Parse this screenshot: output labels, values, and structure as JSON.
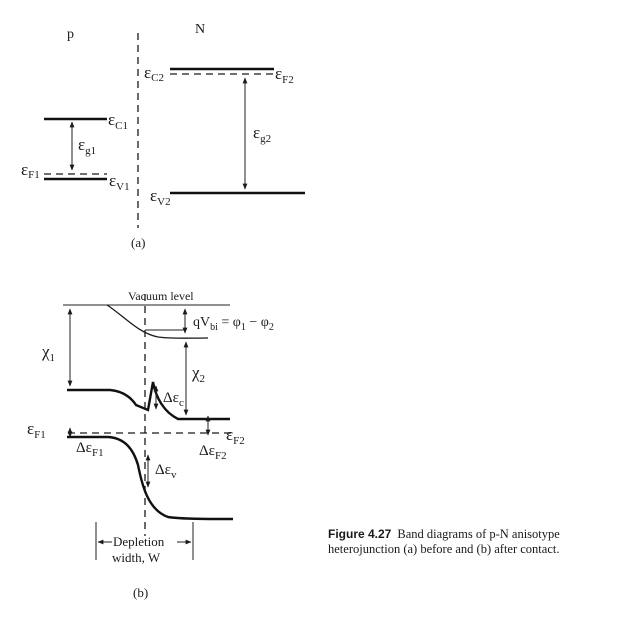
{
  "diagram_a": {
    "region_left": "p",
    "region_right": "N",
    "label": "(a)",
    "ec1": {
      "sym": "ε",
      "sub": "C1"
    },
    "ec2": {
      "sym": "ε",
      "sub": "C2"
    },
    "ef1": {
      "sym": "ε",
      "sub": "F1"
    },
    "ef2": {
      "sym": "ε",
      "sub": "F2"
    },
    "ev1": {
      "sym": "ε",
      "sub": "V1"
    },
    "ev2": {
      "sym": "ε",
      "sub": "V2"
    },
    "eg1": {
      "sym": "ε",
      "sub": "g1"
    },
    "eg2": {
      "sym": "ε",
      "sub": "g2"
    }
  },
  "diagram_b": {
    "label": "(b)",
    "vacuum_level": "Vacuum level",
    "chi1": {
      "sym": "χ",
      "sub": "1"
    },
    "chi2": {
      "sym": "χ",
      "sub": "2"
    },
    "qvbi": {
      "q": "qV",
      "bi": "bi",
      "eq": " = φ",
      "s1": "1",
      "minus": " − φ",
      "s2": "2"
    },
    "ef1": {
      "sym": "ε",
      "sub": "F1"
    },
    "ef2": {
      "sym": "ε",
      "sub": "F2"
    },
    "dec": {
      "sym": "Δε",
      "sub": "c"
    },
    "dev": {
      "sym": "Δε",
      "sub": "v"
    },
    "def1": {
      "sym": "Δε",
      "sub": "F1"
    },
    "def2": {
      "sym": "Δε",
      "sub": "F2"
    },
    "depletion_line1": "Depletion",
    "depletion_line2": "width, W"
  },
  "caption": {
    "figure": "Figure 4.27",
    "text": "Band diagrams of p-N anisotype heterojunction (a) before and (b) after contact."
  }
}
